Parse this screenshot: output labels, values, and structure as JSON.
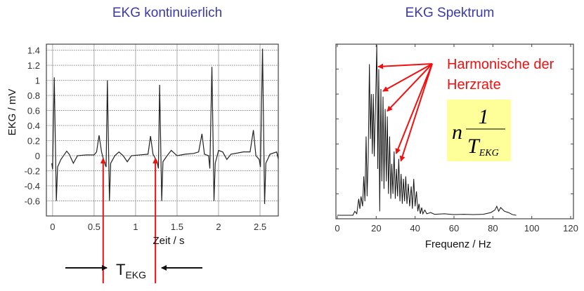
{
  "titles": {
    "left": "EKG kontinuierlich",
    "right": "EKG  Spektrum"
  },
  "annotations": {
    "harmonics_line1": "Harmonische der",
    "harmonics_line2": "Herzrate",
    "formula_n": "n",
    "formula_num": "1",
    "formula_T": "T",
    "formula_sub": "EKG",
    "period_T": "T",
    "period_sub": "EKG",
    "arrow_color": "#f01010",
    "formula_bg": "#ffff99"
  },
  "chart_data": [
    {
      "type": "line",
      "title": "EKG kontinuierlich",
      "xlabel": "Zeit / s",
      "ylabel": "EKG / mV",
      "xlim": [
        -0.075,
        2.72
      ],
      "ylim": [
        -0.8,
        1.48
      ],
      "xticks": [
        0,
        0.5,
        1,
        1.5,
        2,
        2.5
      ],
      "xtick_labels": [
        "0",
        "0.5",
        "1",
        "1.5",
        "2",
        "2.5"
      ],
      "yticks": [
        -0.6,
        -0.4,
        -0.2,
        0,
        0.2,
        0.4,
        0.6,
        0.8,
        1,
        1.2,
        1.4
      ],
      "ytick_labels": [
        "-0.6",
        "-0.4",
        "-0.2",
        "0",
        "0.2",
        "0.4",
        "0.6",
        "0.8",
        "1",
        "1.2",
        "1.4"
      ],
      "grid": true,
      "marked_beats_s": [
        0.66,
        1.29
      ],
      "points": [
        [
          -0.01,
          -0.1
        ],
        [
          0.0,
          -0.18
        ],
        [
          0.02,
          1.04
        ],
        [
          0.045,
          -0.6
        ],
        [
          0.06,
          -0.15
        ],
        [
          0.1,
          -0.05
        ],
        [
          0.17,
          0.06
        ],
        [
          0.2,
          0.02
        ],
        [
          0.25,
          -0.1
        ],
        [
          0.3,
          0.0
        ],
        [
          0.4,
          0.01
        ],
        [
          0.5,
          0.01
        ],
        [
          0.53,
          0.05
        ],
        [
          0.56,
          0.27
        ],
        [
          0.59,
          0.05
        ],
        [
          0.62,
          -0.08
        ],
        [
          0.645,
          -0.15
        ],
        [
          0.66,
          1.0
        ],
        [
          0.685,
          -0.6
        ],
        [
          0.7,
          -0.1
        ],
        [
          0.75,
          0.0
        ],
        [
          0.8,
          0.05
        ],
        [
          0.85,
          0.0
        ],
        [
          0.9,
          -0.08
        ],
        [
          0.95,
          0.0
        ],
        [
          1.05,
          0.01
        ],
        [
          1.15,
          0.02
        ],
        [
          1.18,
          0.26
        ],
        [
          1.21,
          0.02
        ],
        [
          1.26,
          -0.08
        ],
        [
          1.275,
          -0.17
        ],
        [
          1.29,
          0.94
        ],
        [
          1.315,
          -0.6
        ],
        [
          1.33,
          -0.08
        ],
        [
          1.38,
          0.0
        ],
        [
          1.43,
          0.07
        ],
        [
          1.5,
          0.0
        ],
        [
          1.6,
          0.02
        ],
        [
          1.7,
          0.03
        ],
        [
          1.76,
          0.05
        ],
        [
          1.8,
          0.29
        ],
        [
          1.83,
          0.02
        ],
        [
          1.88,
          0.0
        ],
        [
          1.895,
          -0.17
        ],
        [
          1.92,
          1.18
        ],
        [
          1.945,
          -0.6
        ],
        [
          1.96,
          -0.1
        ],
        [
          2.0,
          0.07
        ],
        [
          2.05,
          0.05
        ],
        [
          2.1,
          -0.05
        ],
        [
          2.15,
          0.02
        ],
        [
          2.3,
          0.05
        ],
        [
          2.38,
          0.05
        ],
        [
          2.42,
          0.34
        ],
        [
          2.45,
          0.0
        ],
        [
          2.49,
          -0.05
        ],
        [
          2.505,
          -0.15
        ],
        [
          2.53,
          1.42
        ],
        [
          2.555,
          -0.64
        ],
        [
          2.57,
          -0.1
        ],
        [
          2.62,
          0.02
        ],
        [
          2.7,
          0.05
        ],
        [
          2.72,
          -0.04
        ]
      ]
    },
    {
      "type": "line",
      "title": "EKG  Spektrum",
      "xlabel": "Frequenz  / Hz",
      "ylabel": "",
      "xlim": [
        0,
        120
      ],
      "ylim": [
        0,
        7
      ],
      "xticks": [
        0,
        20,
        40,
        60,
        80,
        100,
        120
      ],
      "xtick_labels": [
        "0",
        "20",
        "40",
        "60",
        "80",
        "100",
        "120"
      ],
      "yticks_unlabeled": [
        1,
        2,
        3,
        4,
        5,
        6
      ],
      "grid": false,
      "harmonic_peaks_hz": [
        20.3,
        22.4,
        24.6,
        29.2,
        31.6
      ],
      "points": [
        [
          0,
          0.14
        ],
        [
          8,
          0.14
        ],
        [
          9,
          0.3
        ],
        [
          10,
          0.2
        ],
        [
          11,
          0.8
        ],
        [
          11.6,
          0.4
        ],
        [
          12.2,
          0.9
        ],
        [
          13,
          0.5
        ],
        [
          13.6,
          1.7
        ],
        [
          14.2,
          0.7
        ],
        [
          14.8,
          3.3
        ],
        [
          15.3,
          0.9
        ],
        [
          15.9,
          2.5
        ],
        [
          16.5,
          6.2
        ],
        [
          17,
          3.2
        ],
        [
          17.5,
          5.0
        ],
        [
          18,
          2.6
        ],
        [
          18.5,
          5.0
        ],
        [
          19,
          2.5
        ],
        [
          19.6,
          4.4
        ],
        [
          20.3,
          6.97
        ],
        [
          20.8,
          2.0
        ],
        [
          21.3,
          6.0
        ],
        [
          21.8,
          0.3
        ],
        [
          22.4,
          5.2
        ],
        [
          22.9,
          1.5
        ],
        [
          23.5,
          4.9
        ],
        [
          24,
          1.2
        ],
        [
          24.6,
          4.4
        ],
        [
          25.2,
          1.5
        ],
        [
          25.7,
          4.1
        ],
        [
          26.3,
          1.0
        ],
        [
          26.9,
          3.3
        ],
        [
          27.5,
          0.8
        ],
        [
          28,
          2.2
        ],
        [
          28.6,
          1.0
        ],
        [
          29.2,
          2.7
        ],
        [
          29.8,
          0.8
        ],
        [
          30.4,
          2.0
        ],
        [
          31,
          0.9
        ],
        [
          31.6,
          2.4
        ],
        [
          32.2,
          0.7
        ],
        [
          32.8,
          1.8
        ],
        [
          33.4,
          0.6
        ],
        [
          34,
          1.6
        ],
        [
          34.6,
          0.7
        ],
        [
          35.2,
          1.7
        ],
        [
          35.8,
          0.6
        ],
        [
          36.5,
          1.4
        ],
        [
          37.2,
          0.5
        ],
        [
          38,
          1.3
        ],
        [
          38.6,
          0.4
        ],
        [
          39.3,
          1.6
        ],
        [
          40,
          0.5
        ],
        [
          40.7,
          1.1
        ],
        [
          41.4,
          0.3
        ],
        [
          42,
          0.6
        ],
        [
          42.7,
          0.2
        ],
        [
          43.4,
          0.45
        ],
        [
          44,
          0.2
        ],
        [
          45,
          0.35
        ],
        [
          46,
          0.2
        ],
        [
          48,
          0.25
        ],
        [
          50,
          0.18
        ],
        [
          55,
          0.2
        ],
        [
          60,
          0.17
        ],
        [
          65,
          0.18
        ],
        [
          70,
          0.17
        ],
        [
          75,
          0.18
        ],
        [
          79,
          0.25
        ],
        [
          81,
          0.35
        ],
        [
          82,
          0.5
        ],
        [
          83,
          0.3
        ],
        [
          84,
          0.45
        ],
        [
          86,
          0.3
        ],
        [
          88,
          0.25
        ],
        [
          90,
          0.17
        ],
        [
          92,
          0.14
        ]
      ]
    }
  ]
}
